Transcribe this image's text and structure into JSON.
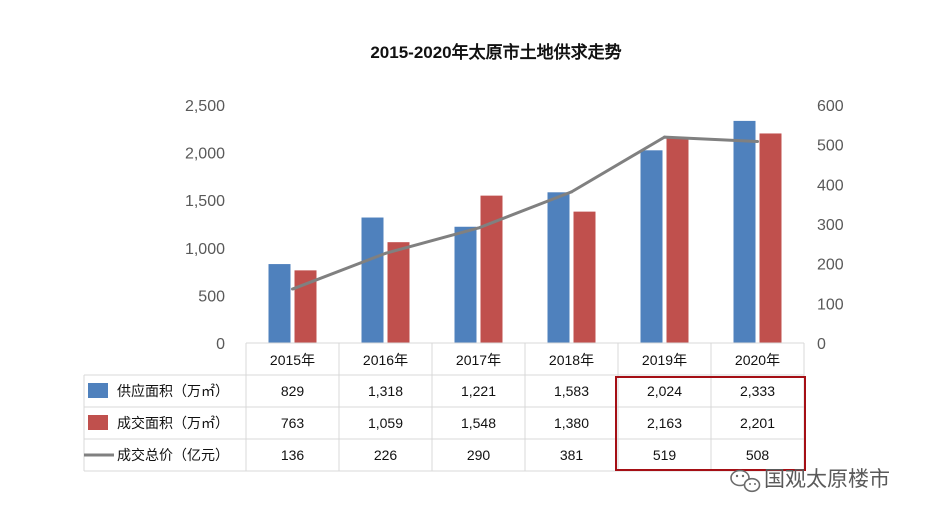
{
  "chart_data": {
    "type": "bar",
    "title": "2015-2020年太原市土地供求走势",
    "categories": [
      "2015年",
      "2016年",
      "2017年",
      "2018年",
      "2019年",
      "2020年"
    ],
    "series": [
      {
        "name": "供应面积（万㎡）",
        "type": "bar",
        "axis": "left",
        "color": "#4F81BD",
        "values": [
          829,
          1318,
          1221,
          1583,
          2024,
          2333
        ]
      },
      {
        "name": "成交面积（万㎡）",
        "type": "bar",
        "axis": "left",
        "color": "#C0504D",
        "values": [
          763,
          1059,
          1548,
          1380,
          2163,
          2201
        ]
      },
      {
        "name": "成交总价（亿元）",
        "type": "line",
        "axis": "right",
        "color": "#808080",
        "values": [
          136,
          226,
          290,
          381,
          519,
          508
        ]
      }
    ],
    "y_left": {
      "ylim": [
        0,
        2500
      ],
      "ticks": [
        "0",
        "500",
        "1,000",
        "1,500",
        "2,000",
        "2,500"
      ]
    },
    "y_right": {
      "ylim": [
        0,
        600
      ],
      "ticks": [
        "0",
        "100",
        "200",
        "300",
        "400",
        "500",
        "600"
      ]
    },
    "data_table": {
      "rows": [
        [
          "829",
          "1,318",
          "1,221",
          "1,583",
          "2,024",
          "2,333"
        ],
        [
          "763",
          "1,059",
          "1,548",
          "1,380",
          "2,163",
          "2,201"
        ],
        [
          "136",
          "226",
          "290",
          "381",
          "519",
          "508"
        ]
      ],
      "highlight_columns": [
        "2019年",
        "2020年"
      ],
      "highlight_color": "#A50F15"
    },
    "grid": false,
    "legend": "in data table"
  },
  "watermark": {
    "text": "国观太原楼市",
    "icon": "wechat-icon"
  }
}
